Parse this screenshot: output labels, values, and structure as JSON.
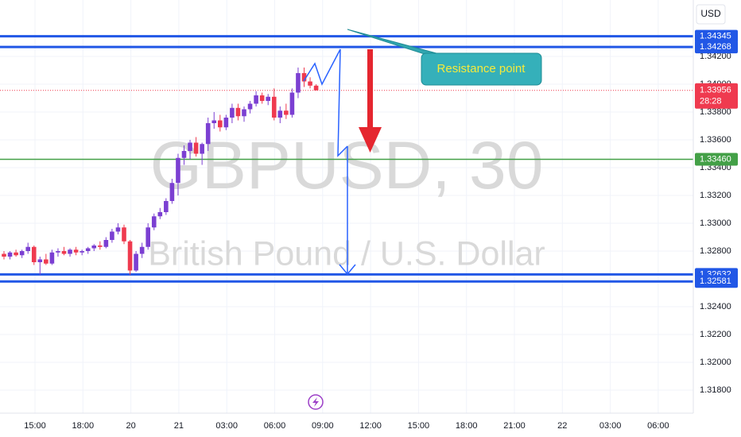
{
  "chart_data": {
    "type": "candlestick",
    "symbol_title": "GBPUSD, 30",
    "symbol_subtitle": "British Pound / U.S. Dollar",
    "currency": "USD",
    "annotation": "Resistance point",
    "timer": "28:28",
    "up_color": "#7b3fd2",
    "down_color": "#ef3a4f",
    "grid": true,
    "ylim": [
      1.31634,
      1.34606
    ],
    "yticks": [
      {
        "value": 1.318,
        "label": "1.31800"
      },
      {
        "value": 1.32,
        "label": "1.32000"
      },
      {
        "value": 1.322,
        "label": "1.32200"
      },
      {
        "value": 1.324,
        "label": "1.32400"
      },
      {
        "value": 1.326,
        "label": "1.32600"
      },
      {
        "value": 1.328,
        "label": "1.32800"
      },
      {
        "value": 1.33,
        "label": "1.33000"
      },
      {
        "value": 1.332,
        "label": "1.33200"
      },
      {
        "value": 1.334,
        "label": "1.33400"
      },
      {
        "value": 1.336,
        "label": "1.33600"
      },
      {
        "value": 1.338,
        "label": "1.33800"
      },
      {
        "value": 1.34,
        "label": "1.34000"
      },
      {
        "value": 1.342,
        "label": "1.34200"
      }
    ],
    "xticks": [
      "15:00",
      "18:00",
      "20",
      "21",
      "03:00",
      "06:00",
      "09:00",
      "12:00",
      "15:00",
      "18:00",
      "21:00",
      "22",
      "03:00",
      "06:00"
    ],
    "levels": [
      {
        "value": 1.34345,
        "color": "#2157e6"
      },
      {
        "value": 1.34268,
        "color": "#2157e6"
      },
      {
        "value": {
          "value": 1.3346,
          "label": "1.33460"
        },
        "color": "#43a047"
      },
      {
        "value": 1.32632,
        "color": "#2157e6"
      },
      {
        "value": 1.32581,
        "color": "#2157e6"
      }
    ],
    "last_price": 1.33956,
    "candles": [
      [
        1.3278,
        1.328,
        1.3274,
        1.3276
      ],
      [
        1.3276,
        1.328,
        1.3274,
        1.3279
      ],
      [
        1.3279,
        1.3281,
        1.3276,
        1.3277
      ],
      [
        1.3277,
        1.3281,
        1.3275,
        1.328
      ],
      [
        1.328,
        1.3286,
        1.3278,
        1.3283
      ],
      [
        1.3283,
        1.3284,
        1.327,
        1.3272
      ],
      [
        1.3272,
        1.3276,
        1.3263,
        1.3274
      ],
      [
        1.3274,
        1.3278,
        1.327,
        1.3271
      ],
      [
        1.3271,
        1.3281,
        1.327,
        1.3279
      ],
      [
        1.3279,
        1.3282,
        1.3276,
        1.328
      ],
      [
        1.328,
        1.3283,
        1.3277,
        1.3278
      ],
      [
        1.3278,
        1.3282,
        1.3276,
        1.3281
      ],
      [
        1.3281,
        1.3283,
        1.3277,
        1.3279
      ],
      [
        1.3279,
        1.3281,
        1.3277,
        1.328
      ],
      [
        1.328,
        1.3283,
        1.3278,
        1.3282
      ],
      [
        1.3282,
        1.3285,
        1.328,
        1.3284
      ],
      [
        1.3284,
        1.3287,
        1.3281,
        1.3283
      ],
      [
        1.3283,
        1.329,
        1.3282,
        1.3288
      ],
      [
        1.3288,
        1.3296,
        1.3286,
        1.3294
      ],
      [
        1.3294,
        1.33,
        1.3292,
        1.3297
      ],
      [
        1.3297,
        1.3299,
        1.3285,
        1.3287
      ],
      [
        1.3287,
        1.3288,
        1.3263,
        1.3266
      ],
      [
        1.3266,
        1.328,
        1.3265,
        1.3278
      ],
      [
        1.3278,
        1.3286,
        1.3275,
        1.3283
      ],
      [
        1.3283,
        1.33,
        1.3281,
        1.3297
      ],
      [
        1.3297,
        1.3307,
        1.3295,
        1.3305
      ],
      [
        1.3305,
        1.3311,
        1.3303,
        1.3308
      ],
      [
        1.3308,
        1.3318,
        1.3306,
        1.3316
      ],
      [
        1.3316,
        1.3332,
        1.3314,
        1.3329
      ],
      [
        1.3329,
        1.335,
        1.332,
        1.3347
      ],
      [
        1.3347,
        1.3356,
        1.3342,
        1.3352
      ],
      [
        1.3352,
        1.336,
        1.3346,
        1.3358
      ],
      [
        1.3358,
        1.3362,
        1.3348,
        1.335
      ],
      [
        1.335,
        1.3358,
        1.3342,
        1.3357
      ],
      [
        1.3357,
        1.3376,
        1.3352,
        1.3372
      ],
      [
        1.3372,
        1.338,
        1.3368,
        1.3374
      ],
      [
        1.3374,
        1.3378,
        1.3366,
        1.3369
      ],
      [
        1.3369,
        1.3378,
        1.3367,
        1.3376
      ],
      [
        1.3376,
        1.3386,
        1.3372,
        1.3383
      ],
      [
        1.3383,
        1.3386,
        1.3374,
        1.3377
      ],
      [
        1.3377,
        1.3384,
        1.3373,
        1.3382
      ],
      [
        1.3382,
        1.3388,
        1.3379,
        1.3386
      ],
      [
        1.3386,
        1.3395,
        1.3384,
        1.3392
      ],
      [
        1.3392,
        1.3394,
        1.3386,
        1.3388
      ],
      [
        1.3388,
        1.3393,
        1.3385,
        1.3391
      ],
      [
        1.3391,
        1.3397,
        1.3374,
        1.3376
      ],
      [
        1.3376,
        1.3384,
        1.3372,
        1.3381
      ],
      [
        1.3381,
        1.3386,
        1.3375,
        1.3378
      ],
      [
        1.3378,
        1.3397,
        1.3376,
        1.3394
      ],
      [
        1.3394,
        1.3412,
        1.339,
        1.3408
      ],
      [
        1.3408,
        1.3412,
        1.3398,
        1.3402
      ],
      [
        1.3402,
        1.3405,
        1.3397,
        1.3399
      ],
      [
        1.3399,
        1.34,
        1.33956,
        1.33956
      ]
    ]
  }
}
